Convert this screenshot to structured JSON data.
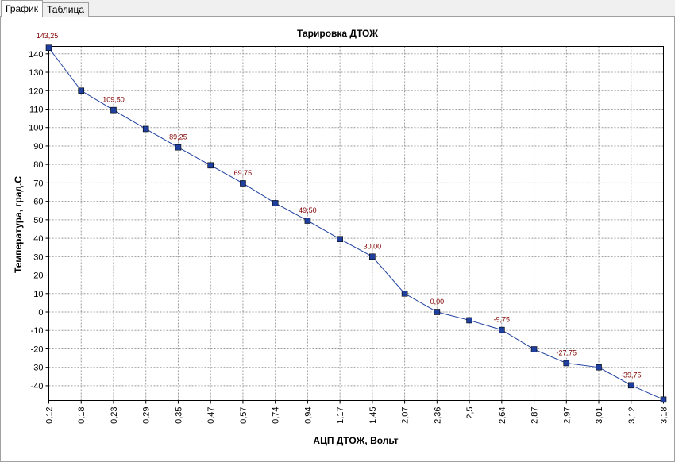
{
  "tabs": [
    {
      "label": "График",
      "active": true
    },
    {
      "label": "Таблица",
      "active": false
    }
  ],
  "chart_data": {
    "type": "line",
    "title": "Тарировка ДТОЖ",
    "xlabel": "АЦП ДТОЖ, Вольт",
    "ylabel": "Температура, град.С",
    "categories": [
      "0,12",
      "0,18",
      "0,23",
      "0,29",
      "0,35",
      "0,47",
      "0,57",
      "0,74",
      "0,94",
      "1,17",
      "1,45",
      "2,07",
      "2,36",
      "2,5",
      "2,64",
      "2,87",
      "2,97",
      "3,01",
      "3,12",
      "3,18"
    ],
    "series": [
      {
        "values": [
          143.25,
          120,
          109.5,
          99.25,
          89.25,
          79.5,
          69.75,
          59,
          49.5,
          39.5,
          30,
          10,
          0,
          -4.5,
          -9.75,
          -20.25,
          -27.75,
          -30,
          -39.75,
          -47.5
        ]
      }
    ],
    "data_labels": [
      {
        "index": 0,
        "text": "143,25"
      },
      {
        "index": 2,
        "text": "109,50"
      },
      {
        "index": 4,
        "text": "89,25"
      },
      {
        "index": 6,
        "text": "69,75"
      },
      {
        "index": 8,
        "text": "49,50"
      },
      {
        "index": 10,
        "text": "30,00"
      },
      {
        "index": 12,
        "text": "0,00"
      },
      {
        "index": 14,
        "text": "-9,75"
      },
      {
        "index": 16,
        "text": "-27,75"
      },
      {
        "index": 18,
        "text": "-39,75"
      }
    ],
    "yticks": [
      140,
      130,
      120,
      110,
      100,
      90,
      80,
      70,
      60,
      50,
      40,
      30,
      20,
      10,
      0,
      -10,
      -20,
      -30,
      -40
    ],
    "ylim": [
      -48,
      144
    ],
    "grid": true,
    "line_color": "#1f3f9f",
    "marker_color": "#1f3f9f",
    "label_color": "#800000"
  }
}
